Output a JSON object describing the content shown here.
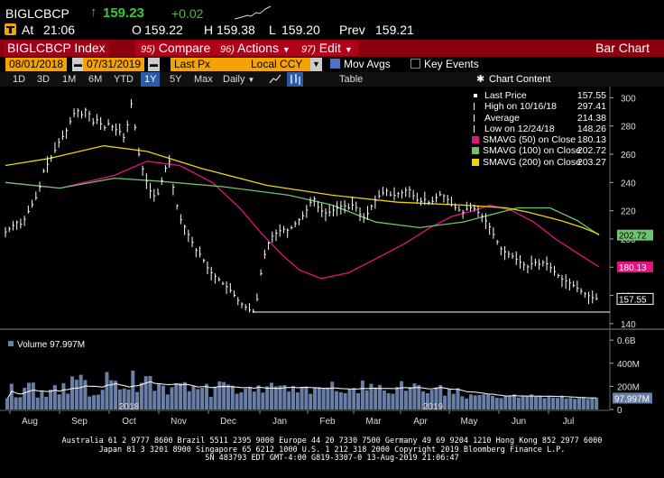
{
  "quote": {
    "ticker": "BIGLCBCP",
    "last": "159.23",
    "change": "+0.02",
    "at_label": "At",
    "time": "21:06",
    "open_label": "O",
    "open": "159.22",
    "high_label": "H",
    "high": "159.38",
    "low_label": "L",
    "low": "159.20",
    "prev_label": "Prev",
    "prev": "159.21"
  },
  "titlebar": {
    "security": "BIGLCBCP Index",
    "compare_num": "95)",
    "compare": "Compare",
    "actions_num": "96)",
    "actions": "Actions",
    "edit_num": "97)",
    "edit": "Edit",
    "chart_type": "Bar Chart"
  },
  "controls": {
    "start_date": "08/01/2018",
    "end_date": "07/31/2019",
    "field": "Last Px",
    "currency": "Local CCY",
    "mov_avgs": "Mov Avgs",
    "key_events": "Key Events"
  },
  "toolbar": {
    "periods": [
      "1D",
      "3D",
      "1M",
      "6M",
      "YTD",
      "1Y",
      "5Y",
      "Max"
    ],
    "selected_period": "1Y",
    "frequency": "Daily",
    "table": "Table",
    "chart_content": "Chart Content"
  },
  "legend": {
    "items": [
      {
        "label": "Last Price",
        "value": "157.55",
        "color": "#ffffff"
      },
      {
        "label": "High on 10/16/18",
        "value": "297.41",
        "color": "#ffffff"
      },
      {
        "label": "Average",
        "value": "214.38",
        "color": "#ffffff"
      },
      {
        "label": "Low on 12/24/18",
        "value": "148.26",
        "color": "#ffffff"
      },
      {
        "label": "SMAVG (50)  on Close",
        "value": "180.13",
        "color": "#e0157e"
      },
      {
        "label": "SMAVG (100)  on Close",
        "value": "202.72",
        "color": "#6cc46c"
      },
      {
        "label": "SMAVG (200)  on Close",
        "value": "203.27",
        "color": "#e8d800"
      }
    ]
  },
  "chart_data": {
    "type": "line",
    "title": "BIGLCBCP Index",
    "xlabel": "",
    "ylabel": "",
    "x_ticks": [
      "Aug",
      "Sep",
      "Oct",
      "Nov",
      "Dec",
      "Jan",
      "Feb",
      "Mar",
      "Apr",
      "May",
      "Jun",
      "Jul"
    ],
    "year_labels": [
      "2018",
      "2019"
    ],
    "price_axis": {
      "ylim": [
        138,
        306
      ],
      "ticks": [
        140,
        160,
        180,
        200,
        220,
        240,
        260,
        280,
        300
      ]
    },
    "price_points": [
      [
        0,
        205
      ],
      [
        5,
        208
      ],
      [
        10,
        212
      ],
      [
        15,
        210
      ],
      [
        20,
        218
      ],
      [
        25,
        225
      ],
      [
        30,
        232
      ],
      [
        35,
        248
      ],
      [
        40,
        255
      ],
      [
        45,
        262
      ],
      [
        50,
        270
      ],
      [
        55,
        275
      ],
      [
        60,
        284
      ],
      [
        65,
        292
      ],
      [
        70,
        288
      ],
      [
        75,
        293
      ],
      [
        80,
        282
      ],
      [
        85,
        285
      ],
      [
        90,
        278
      ],
      [
        95,
        282
      ],
      [
        100,
        278
      ],
      [
        105,
        276
      ],
      [
        110,
        270
      ],
      [
        115,
        297
      ],
      [
        118,
        290
      ],
      [
        120,
        268
      ],
      [
        125,
        252
      ],
      [
        130,
        240
      ],
      [
        135,
        230
      ],
      [
        140,
        232
      ],
      [
        145,
        245
      ],
      [
        150,
        258
      ],
      [
        152,
        246
      ],
      [
        155,
        232
      ],
      [
        160,
        215
      ],
      [
        165,
        208
      ],
      [
        170,
        200
      ],
      [
        175,
        192
      ],
      [
        180,
        188
      ],
      [
        185,
        180
      ],
      [
        190,
        175
      ],
      [
        195,
        172
      ],
      [
        200,
        168
      ],
      [
        205,
        165
      ],
      [
        210,
        160
      ],
      [
        215,
        155
      ],
      [
        220,
        152
      ],
      [
        225,
        149
      ],
      [
        228,
        148.5
      ],
      [
        230,
        152
      ],
      [
        233,
        168
      ],
      [
        236,
        183
      ],
      [
        240,
        195
      ],
      [
        245,
        202
      ],
      [
        250,
        205
      ],
      [
        255,
        207
      ],
      [
        260,
        206
      ],
      [
        265,
        210
      ],
      [
        270,
        214
      ],
      [
        275,
        218
      ],
      [
        280,
        226
      ],
      [
        283,
        230
      ],
      [
        285,
        224
      ],
      [
        290,
        220
      ],
      [
        295,
        218
      ],
      [
        300,
        220
      ],
      [
        305,
        222
      ],
      [
        310,
        224
      ],
      [
        315,
        222
      ],
      [
        320,
        225
      ],
      [
        325,
        218
      ],
      [
        330,
        214
      ],
      [
        335,
        222
      ],
      [
        340,
        228
      ],
      [
        345,
        232
      ],
      [
        350,
        234
      ],
      [
        355,
        230
      ],
      [
        360,
        232
      ],
      [
        365,
        233
      ],
      [
        370,
        236
      ],
      [
        375,
        230
      ],
      [
        380,
        226
      ],
      [
        385,
        228
      ],
      [
        390,
        225
      ],
      [
        395,
        229
      ],
      [
        400,
        232
      ],
      [
        405,
        229
      ],
      [
        410,
        224
      ],
      [
        415,
        221
      ],
      [
        420,
        219
      ],
      [
        425,
        222
      ],
      [
        430,
        222
      ],
      [
        435,
        218
      ],
      [
        440,
        214
      ],
      [
        445,
        208
      ],
      [
        450,
        200
      ],
      [
        455,
        193
      ],
      [
        460,
        190
      ],
      [
        465,
        188
      ],
      [
        470,
        185
      ],
      [
        475,
        182
      ],
      [
        480,
        180
      ],
      [
        485,
        184
      ],
      [
        490,
        182
      ],
      [
        495,
        184
      ],
      [
        500,
        180
      ],
      [
        505,
        176
      ],
      [
        510,
        172
      ],
      [
        515,
        170
      ],
      [
        520,
        168
      ],
      [
        525,
        165
      ],
      [
        530,
        162
      ],
      [
        535,
        160
      ],
      [
        540,
        158
      ],
      [
        545,
        157.55
      ]
    ],
    "series": [
      {
        "name": "Last Price",
        "color": "#ffffff"
      },
      {
        "name": "SMAVG (50) on Close",
        "color": "#e0157e",
        "points": [
          [
            0,
            240
          ],
          [
            50,
            236
          ],
          [
            100,
            245
          ],
          [
            130,
            255
          ],
          [
            160,
            252
          ],
          [
            190,
            240
          ],
          [
            215,
            222
          ],
          [
            235,
            204
          ],
          [
            255,
            188
          ],
          [
            270,
            178
          ],
          [
            290,
            172
          ],
          [
            315,
            176
          ],
          [
            340,
            186
          ],
          [
            365,
            196
          ],
          [
            390,
            208
          ],
          [
            410,
            216
          ],
          [
            430,
            220
          ],
          [
            445,
            224
          ],
          [
            465,
            220
          ],
          [
            485,
            212
          ],
          [
            505,
            200
          ],
          [
            525,
            190
          ],
          [
            545,
            180.13
          ]
        ]
      },
      {
        "name": "SMAVG (100) on Close",
        "color": "#6cc46c",
        "points": [
          [
            0,
            240
          ],
          [
            50,
            236
          ],
          [
            100,
            243
          ],
          [
            140,
            241
          ],
          [
            200,
            237
          ],
          [
            260,
            231
          ],
          [
            300,
            224
          ],
          [
            340,
            212
          ],
          [
            380,
            208
          ],
          [
            420,
            212
          ],
          [
            450,
            218
          ],
          [
            470,
            222
          ],
          [
            500,
            222
          ],
          [
            525,
            213
          ],
          [
            545,
            202.72
          ]
        ]
      },
      {
        "name": "SMAVG (200) on Close",
        "color": "#e8d800",
        "points": [
          [
            0,
            252
          ],
          [
            40,
            257
          ],
          [
            90,
            266
          ],
          [
            130,
            262
          ],
          [
            180,
            250
          ],
          [
            240,
            238
          ],
          [
            300,
            231
          ],
          [
            360,
            226
          ],
          [
            420,
            224
          ],
          [
            460,
            222
          ],
          [
            480,
            219
          ],
          [
            510,
            213
          ],
          [
            530,
            208
          ],
          [
            545,
            203.27
          ]
        ]
      }
    ],
    "low_reference": 148.26,
    "volume": {
      "label": "Volume",
      "value_label": "97.997M",
      "ylim": [
        0,
        640
      ],
      "ticks": [
        {
          "v": 0,
          "label": "0"
        },
        {
          "v": 200,
          "label": "200M"
        },
        {
          "v": 400,
          "label": "400M"
        },
        {
          "v": 600,
          "label": "0.6B"
        }
      ],
      "values": [
        96,
        223,
        105,
        106,
        187,
        231,
        233,
        103,
        158,
        109,
        171,
        210,
        130,
        228,
        137,
        286,
        257,
        300,
        254,
        113,
        124,
        128,
        170,
        324,
        253,
        248,
        173,
        181,
        172,
        336,
        152,
        231,
        288,
        289,
        161,
        218,
        206,
        130,
        192,
        227,
        228,
        236,
        158,
        204,
        176,
        187,
        221,
        109,
        193,
        243,
        237,
        215,
        206,
        136,
        148,
        181,
        196,
        155,
        208,
        146,
        200,
        231,
        200,
        207,
        211,
        155,
        203,
        148,
        194,
        199,
        136,
        188,
        193,
        186,
        189,
        240,
        158,
        149,
        141,
        174,
        186,
        141,
        251,
        166,
        222,
        189,
        212,
        165,
        141,
        136,
        195,
        245,
        162,
        194,
        225,
        210,
        157,
        140,
        170,
        191,
        210,
        120,
        175,
        135,
        184,
        114,
        95,
        130,
        122,
        125,
        131,
        128,
        118,
        101,
        98,
        114,
        122,
        130,
        103,
        120,
        113,
        130,
        110,
        118,
        98,
        108,
        103,
        100,
        120,
        95,
        100,
        92,
        98,
        103,
        91,
        99,
        98
      ]
    }
  },
  "footer": {
    "line1": "Australia 61 2 9777 8600 Brazil 5511 2395 9000 Europe 44 20 7330 7500 Germany 49 69 9204 1210 Hong Kong 852 2977 6000",
    "line2": "Japan 81 3 3201 8900         Singapore 65 6212 1000         U.S. 1 212 318 2000                Copyright 2019 Bloomberg Finance L.P.",
    "line3": "SN 483793 EDT  GMT-4:00 G819-3307-0 13-Aug-2019 21:06:47"
  }
}
